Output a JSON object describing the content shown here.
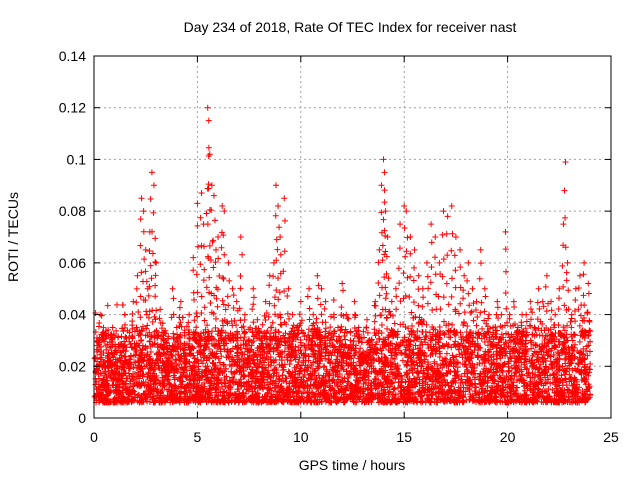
{
  "chart_data": {
    "type": "scatter",
    "title": "Day 234 of 2018, Rate Of TEC Index for receiver nast",
    "xlabel": "GPS time / hours",
    "ylabel": "ROTI / TECUs",
    "xlim": [
      0,
      25
    ],
    "ylim": [
      0,
      0.14
    ],
    "xticks": [
      0,
      5,
      10,
      15,
      20,
      25
    ],
    "xtick_labels": [
      "0",
      "5",
      "10",
      "15",
      "20",
      "25"
    ],
    "yticks": [
      0,
      0.02,
      0.04,
      0.06,
      0.08,
      0.1,
      0.12,
      0.14
    ],
    "ytick_labels": [
      "0",
      "0.02",
      "0.04",
      "0.06",
      "0.08",
      "0.1",
      "0.12",
      "0.14"
    ],
    "grid": true,
    "marker": "+",
    "marker_color": "#ff0000",
    "data_extent_hours": [
      0,
      24
    ],
    "series": [
      {
        "name": "ROTI",
        "points": [
          [
            0.1,
            0.018
          ],
          [
            0.2,
            0.03
          ],
          [
            0.3,
            0.04
          ],
          [
            0.5,
            0.012
          ],
          [
            0.7,
            0.025
          ],
          [
            0.9,
            0.035
          ],
          [
            1.1,
            0.015
          ],
          [
            1.3,
            0.022
          ],
          [
            1.5,
            0.036
          ],
          [
            1.7,
            0.02
          ],
          [
            1.9,
            0.045
          ],
          [
            2.1,
            0.055
          ],
          [
            2.2,
            0.028
          ],
          [
            2.3,
            0.085
          ],
          [
            2.4,
            0.08
          ],
          [
            2.5,
            0.065
          ],
          [
            2.6,
            0.05
          ],
          [
            2.7,
            0.072
          ],
          [
            2.8,
            0.095
          ],
          [
            2.9,
            0.09
          ],
          [
            3.0,
            0.06
          ],
          [
            3.2,
            0.042
          ],
          [
            3.4,
            0.03
          ],
          [
            3.6,
            0.022
          ],
          [
            3.8,
            0.05
          ],
          [
            4.0,
            0.035
          ],
          [
            4.2,
            0.045
          ],
          [
            4.4,
            0.028
          ],
          [
            4.6,
            0.04
          ],
          [
            4.8,
            0.062
          ],
          [
            5.0,
            0.083
          ],
          [
            5.2,
            0.087
          ],
          [
            5.3,
            0.075
          ],
          [
            5.5,
            0.12
          ],
          [
            5.55,
            0.115
          ],
          [
            5.6,
            0.102
          ],
          [
            5.7,
            0.09
          ],
          [
            5.8,
            0.086
          ],
          [
            5.9,
            0.065
          ],
          [
            6.0,
            0.07
          ],
          [
            6.2,
            0.082
          ],
          [
            6.3,
            0.08
          ],
          [
            6.5,
            0.06
          ],
          [
            6.7,
            0.05
          ],
          [
            6.9,
            0.045
          ],
          [
            7.1,
            0.07
          ],
          [
            7.3,
            0.04
          ],
          [
            7.5,
            0.03
          ],
          [
            7.7,
            0.05
          ],
          [
            7.9,
            0.038
          ],
          [
            8.1,
            0.03
          ],
          [
            8.3,
            0.045
          ],
          [
            8.5,
            0.055
          ],
          [
            8.7,
            0.06
          ],
          [
            8.8,
            0.09
          ],
          [
            8.9,
            0.082
          ],
          [
            9.0,
            0.07
          ],
          [
            9.2,
            0.085
          ],
          [
            9.4,
            0.05
          ],
          [
            9.6,
            0.04
          ],
          [
            9.8,
            0.035
          ],
          [
            10.0,
            0.045
          ],
          [
            10.2,
            0.028
          ],
          [
            10.4,
            0.05
          ],
          [
            10.6,
            0.04
          ],
          [
            10.8,
            0.055
          ],
          [
            11.0,
            0.05
          ],
          [
            11.2,
            0.045
          ],
          [
            11.4,
            0.03
          ],
          [
            11.6,
            0.04
          ],
          [
            11.8,
            0.035
          ],
          [
            12.0,
            0.052
          ],
          [
            12.2,
            0.04
          ],
          [
            12.4,
            0.03
          ],
          [
            12.6,
            0.045
          ],
          [
            12.8,
            0.035
          ],
          [
            13.0,
            0.025
          ],
          [
            13.2,
            0.038
          ],
          [
            13.4,
            0.03
          ],
          [
            13.6,
            0.045
          ],
          [
            13.8,
            0.065
          ],
          [
            13.9,
            0.09
          ],
          [
            14.0,
            0.1
          ],
          [
            14.05,
            0.095
          ],
          [
            14.1,
            0.08
          ],
          [
            14.2,
            0.07
          ],
          [
            14.4,
            0.045
          ],
          [
            14.6,
            0.05
          ],
          [
            14.8,
            0.075
          ],
          [
            15.0,
            0.082
          ],
          [
            15.1,
            0.08
          ],
          [
            15.3,
            0.07
          ],
          [
            15.5,
            0.065
          ],
          [
            15.7,
            0.055
          ],
          [
            15.9,
            0.05
          ],
          [
            16.1,
            0.06
          ],
          [
            16.3,
            0.075
          ],
          [
            16.5,
            0.07
          ],
          [
            16.7,
            0.06
          ],
          [
            16.9,
            0.08
          ],
          [
            17.1,
            0.078
          ],
          [
            17.3,
            0.082
          ],
          [
            17.5,
            0.07
          ],
          [
            17.7,
            0.065
          ],
          [
            17.9,
            0.055
          ],
          [
            18.1,
            0.06
          ],
          [
            18.3,
            0.05
          ],
          [
            18.5,
            0.045
          ],
          [
            18.7,
            0.065
          ],
          [
            18.9,
            0.05
          ],
          [
            19.1,
            0.04
          ],
          [
            19.3,
            0.035
          ],
          [
            19.5,
            0.045
          ],
          [
            19.7,
            0.04
          ],
          [
            19.9,
            0.072
          ],
          [
            20.1,
            0.04
          ],
          [
            20.3,
            0.045
          ],
          [
            20.5,
            0.035
          ],
          [
            20.7,
            0.04
          ],
          [
            20.9,
            0.04
          ],
          [
            21.1,
            0.045
          ],
          [
            21.3,
            0.035
          ],
          [
            21.5,
            0.05
          ],
          [
            21.7,
            0.045
          ],
          [
            21.9,
            0.055
          ],
          [
            22.1,
            0.045
          ],
          [
            22.3,
            0.04
          ],
          [
            22.5,
            0.05
          ],
          [
            22.7,
            0.075
          ],
          [
            22.8,
            0.099
          ],
          [
            22.9,
            0.06
          ],
          [
            23.1,
            0.04
          ],
          [
            23.3,
            0.05
          ],
          [
            23.5,
            0.055
          ],
          [
            23.7,
            0.06
          ],
          [
            23.9,
            0.052
          ]
        ]
      }
    ]
  }
}
